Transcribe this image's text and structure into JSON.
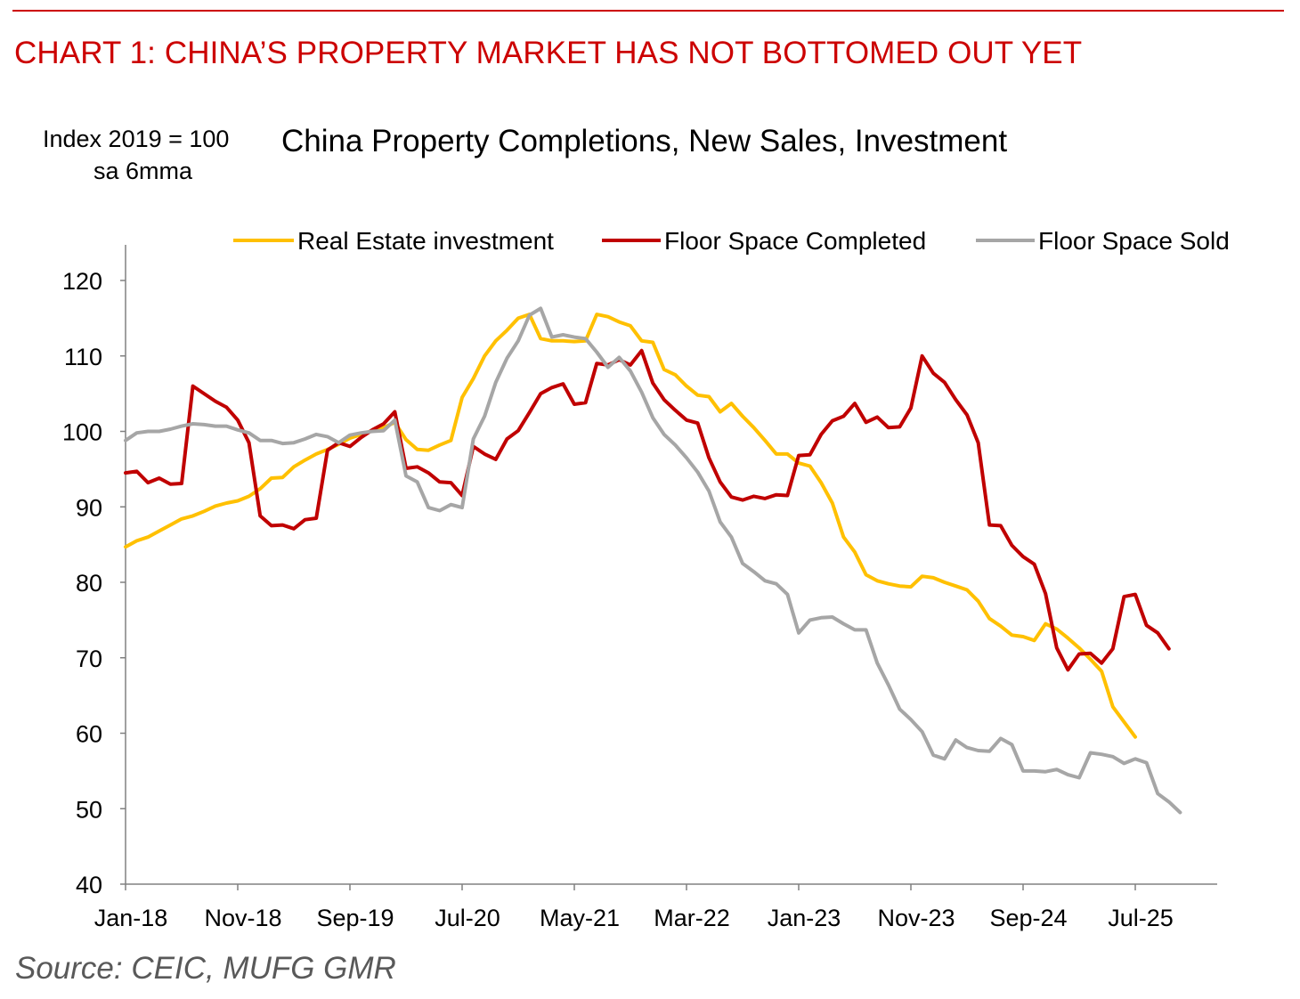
{
  "header": {
    "headline": "CHART 1: CHINA’S PROPERTY MARKET HAS NOT BOTTOMED OUT YET",
    "unit_line1": "Index 2019 = 100",
    "unit_line2": "sa 6mma",
    "chart_title": "China Property Completions, New Sales, Investment"
  },
  "footer": {
    "source": "Source: CEIC, MUFG GMR"
  },
  "chart_data": {
    "type": "line",
    "title": "China Property Completions, New Sales, Investment",
    "ylabel": "Index 2019 = 100",
    "ylabel2": "sa 6mma",
    "xlabel": "",
    "ylim": [
      40,
      120
    ],
    "yticks": [
      40,
      50,
      60,
      70,
      80,
      90,
      100,
      110,
      120
    ],
    "x_start": "Jan-18",
    "x_step_months": 1,
    "xticks": [
      {
        "index": 0,
        "label": "Jan-18"
      },
      {
        "index": 10,
        "label": "Nov-18"
      },
      {
        "index": 20,
        "label": "Sep-19"
      },
      {
        "index": 30,
        "label": "Jul-20"
      },
      {
        "index": 40,
        "label": "May-21"
      },
      {
        "index": 50,
        "label": "Mar-22"
      },
      {
        "index": 60,
        "label": "Jan-23"
      },
      {
        "index": 70,
        "label": "Nov-23"
      },
      {
        "index": 80,
        "label": "Sep-24"
      },
      {
        "index": 90,
        "label": "Jul-25"
      }
    ],
    "grid": false,
    "legend_position": "top",
    "series": [
      {
        "name": "Real Estate investment",
        "color": "#FFC000",
        "values": [
          84.7,
          85.5,
          86.0,
          86.8,
          87.6,
          88.4,
          88.8,
          89.4,
          90.1,
          90.5,
          90.8,
          91.4,
          92.4,
          93.8,
          93.9,
          95.3,
          96.2,
          97.0,
          97.6,
          98.3,
          99.1,
          99.6,
          100.1,
          100.5,
          101.2,
          98.9,
          97.6,
          97.5,
          98.2,
          98.8,
          104.5,
          107.0,
          110.0,
          112.0,
          113.4,
          115.0,
          115.5,
          112.3,
          112.0,
          112.0,
          111.9,
          112.0,
          115.5,
          115.2,
          114.5,
          114.0,
          112.0,
          111.8,
          108.2,
          107.5,
          106.0,
          104.8,
          104.6,
          102.6,
          103.7,
          102.0,
          100.5,
          98.8,
          97.0,
          97.0,
          95.8,
          95.4,
          93.2,
          90.5,
          86.0,
          84.0,
          81.0,
          80.2,
          79.8,
          79.5,
          79.4,
          80.8,
          80.6,
          80.0,
          79.5,
          79.0,
          77.5,
          75.2,
          74.2,
          73.0,
          72.8,
          72.3,
          74.5,
          73.8,
          72.6,
          71.3,
          69.8,
          68.2,
          63.5,
          61.5,
          59.5
        ]
      },
      {
        "name": "Floor Space Completed",
        "color": "#C00000",
        "values": [
          94.5,
          94.7,
          93.2,
          93.8,
          93.0,
          93.1,
          106.0,
          105.0,
          104.0,
          103.2,
          101.5,
          98.5,
          88.8,
          87.5,
          87.6,
          87.1,
          88.3,
          88.5,
          97.5,
          98.5,
          98.0,
          99.2,
          100.2,
          101.0,
          102.6,
          95.1,
          95.3,
          94.5,
          93.3,
          93.2,
          91.5,
          98.0,
          97.0,
          96.3,
          99.0,
          100.1,
          102.5,
          105.0,
          105.8,
          106.3,
          103.6,
          103.8,
          109.0,
          108.8,
          109.5,
          108.8,
          110.7,
          106.4,
          104.2,
          102.8,
          101.5,
          101.1,
          96.5,
          93.3,
          91.3,
          90.9,
          91.4,
          91.1,
          91.6,
          91.5,
          96.8,
          96.9,
          99.6,
          101.4,
          102.0,
          103.7,
          101.2,
          101.9,
          100.5,
          100.6,
          103.1,
          110.0,
          107.7,
          106.5,
          104.2,
          102.2,
          98.5,
          87.6,
          87.5,
          84.9,
          83.4,
          82.4,
          78.5,
          71.3,
          68.4,
          70.5,
          70.6,
          69.3,
          71.2,
          78.1,
          78.4,
          74.3,
          73.3,
          71.2
        ]
      },
      {
        "name": "Floor Space Sold",
        "color": "#A6A6A6",
        "values": [
          98.8,
          99.8,
          100.0,
          100.0,
          100.3,
          100.7,
          101.0,
          100.9,
          100.7,
          100.7,
          100.2,
          99.8,
          98.8,
          98.8,
          98.4,
          98.5,
          99.0,
          99.6,
          99.3,
          98.5,
          99.5,
          99.8,
          100.0,
          100.1,
          101.5,
          94.1,
          93.3,
          89.9,
          89.5,
          90.3,
          89.9,
          99.0,
          102.0,
          106.5,
          109.7,
          112.0,
          115.4,
          116.3,
          112.5,
          112.8,
          112.5,
          112.3,
          110.5,
          108.5,
          109.8,
          108.0,
          105.2,
          101.8,
          99.6,
          98.2,
          96.5,
          94.6,
          92.1,
          88.0,
          86.0,
          82.5,
          81.4,
          80.2,
          79.8,
          78.4,
          73.3,
          75.0,
          75.3,
          75.4,
          74.5,
          73.7,
          73.7,
          69.3,
          66.4,
          63.2,
          61.8,
          60.2,
          57.1,
          56.6,
          59.1,
          58.1,
          57.7,
          57.6,
          59.3,
          58.5,
          55.0,
          55.0,
          54.9,
          55.2,
          54.5,
          54.1,
          57.4,
          57.2,
          56.9,
          56.0,
          56.6,
          56.1,
          52.0,
          50.9,
          49.5
        ]
      }
    ]
  }
}
